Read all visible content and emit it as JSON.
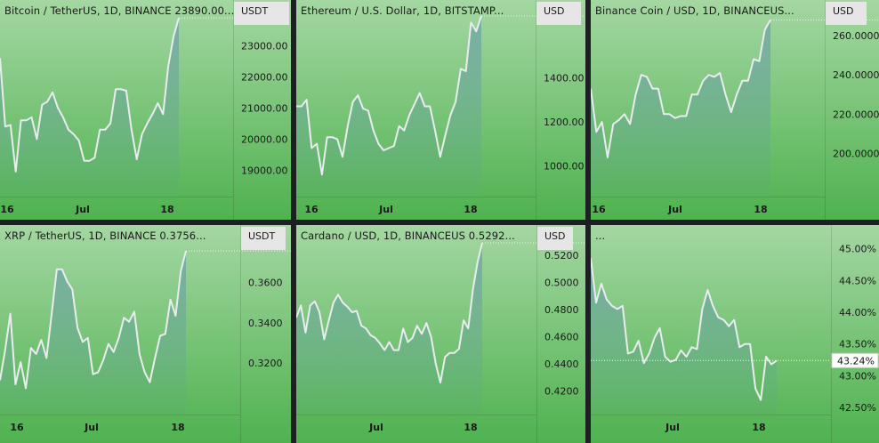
{
  "panes": [
    {
      "id": "btc",
      "title": "Bitcoin / TetherUS, 1D, BINANCE  23890.00...",
      "currency": "USDT"
    },
    {
      "id": "eth",
      "title": "Ethereum / U.S. Dollar, 1D, BITSTAMP...",
      "currency": "USD"
    },
    {
      "id": "bnb",
      "title": "Binance Coin / USD, 1D, BINANCEUS...",
      "currency": "USD"
    },
    {
      "id": "xrp",
      "title": "XRP / TetherUS, 1D, BINANCE  0.3756...",
      "currency": "USDT"
    },
    {
      "id": "ada",
      "title": "Cardano / USD, 1D, BINANCEUS  0.5292...",
      "currency": "USD"
    },
    {
      "id": "pct",
      "title": "...",
      "currency": "",
      "last_label": "43.24%"
    }
  ],
  "chart_data": [
    {
      "type": "area",
      "title": "Bitcoin / TetherUS, 1D, BINANCE  23890.00...",
      "y_unit": "USDT",
      "x_tick_labels": [
        "16",
        "Jul",
        "18"
      ],
      "y_tick_labels": [
        "19000.00",
        "20000.00",
        "21000.00",
        "22000.00",
        "23000.00"
      ],
      "y_ticks": [
        19000,
        20000,
        21000,
        22000,
        23000
      ],
      "ylim": [
        18150,
        23950
      ],
      "values": [
        22600,
        20400,
        20450,
        18950,
        20600,
        20600,
        20700,
        20000,
        21100,
        21200,
        21500,
        21000,
        20700,
        20300,
        20150,
        19950,
        19300,
        19300,
        19400,
        20300,
        20300,
        20500,
        21600,
        21600,
        21550,
        20300,
        19350,
        20150,
        20500,
        20800,
        21150,
        20800,
        22350,
        23300,
        23890
      ]
    },
    {
      "type": "area",
      "title": "Ethereum / U.S. Dollar, 1D, BITSTAMP...",
      "y_unit": "USD",
      "x_tick_labels": [
        "16",
        "Jul",
        "18"
      ],
      "y_tick_labels": [
        "1000.00",
        "1200.00",
        "1400.00"
      ],
      "y_ticks": [
        1000,
        1200,
        1400
      ],
      "ylim": [
        860,
        1680
      ],
      "values": [
        1270,
        1270,
        1300,
        1080,
        1100,
        960,
        1130,
        1130,
        1120,
        1040,
        1180,
        1290,
        1320,
        1260,
        1250,
        1160,
        1100,
        1070,
        1080,
        1090,
        1180,
        1160,
        1230,
        1280,
        1330,
        1270,
        1270,
        1160,
        1040,
        1140,
        1230,
        1290,
        1440,
        1430,
        1650,
        1610,
        1680
      ]
    },
    {
      "type": "area",
      "title": "Binance Coin / USD, 1D, BINANCEUS...",
      "y_unit": "USD",
      "x_tick_labels": [
        "16",
        "Jul",
        "18"
      ],
      "y_tick_labels": [
        "200.0000",
        "220.0000",
        "240.0000",
        "260.0000"
      ],
      "y_ticks": [
        200,
        220,
        240,
        260
      ],
      "ylim": [
        178,
        270
      ],
      "values": [
        233,
        211,
        216,
        198,
        215,
        217,
        220,
        215,
        230,
        240,
        239,
        233,
        233,
        220,
        220,
        218,
        219,
        219,
        230,
        230,
        237,
        240,
        239,
        241,
        230,
        221,
        230,
        237,
        237,
        248,
        247,
        263,
        268
      ]
    },
    {
      "type": "area",
      "title": "XRP / TetherUS, 1D, BINANCE  0.3756...",
      "y_unit": "USDT",
      "x_tick_labels": [
        "16",
        "Jul",
        "18"
      ],
      "y_tick_labels": [
        "0.3200",
        "0.3400",
        "0.3600"
      ],
      "y_ticks": [
        0.32,
        0.34,
        0.36
      ],
      "ylim": [
        0.2945,
        0.3805
      ],
      "values": [
        0.3115,
        0.3265,
        0.3445,
        0.3095,
        0.3205,
        0.3075,
        0.3275,
        0.3245,
        0.3315,
        0.3225,
        0.3445,
        0.3665,
        0.3665,
        0.3605,
        0.3565,
        0.3375,
        0.3305,
        0.3325,
        0.3145,
        0.3155,
        0.3215,
        0.3295,
        0.3255,
        0.3325,
        0.3425,
        0.3405,
        0.3455,
        0.3245,
        0.3155,
        0.3105,
        0.3225,
        0.3335,
        0.3345,
        0.3515,
        0.3435,
        0.3655,
        0.3756
      ]
    },
    {
      "type": "area",
      "title": "Cardano / USD, 1D, BINANCEUS  0.5292...",
      "y_unit": "USD",
      "x_tick_labels": [
        "Jul",
        "18"
      ],
      "y_tick_labels": [
        "0.4200",
        "0.4400",
        "0.4600",
        "0.4800",
        "0.5000",
        "0.5200"
      ],
      "y_ticks": [
        0.42,
        0.44,
        0.46,
        0.48,
        0.5,
        0.52
      ],
      "ylim": [
        0.4025,
        0.5305
      ],
      "values": [
        0.474,
        0.483,
        0.463,
        0.483,
        0.486,
        0.478,
        0.458,
        0.472,
        0.485,
        0.491,
        0.485,
        0.482,
        0.478,
        0.479,
        0.468,
        0.466,
        0.461,
        0.459,
        0.455,
        0.45,
        0.456,
        0.45,
        0.45,
        0.466,
        0.456,
        0.459,
        0.468,
        0.462,
        0.47,
        0.46,
        0.44,
        0.426,
        0.445,
        0.448,
        0.448,
        0.451,
        0.472,
        0.466,
        0.495,
        0.515,
        0.5292
      ]
    },
    {
      "type": "area",
      "title": "...",
      "y_unit": "%",
      "x_tick_labels": [
        "Jul",
        "18"
      ],
      "y_tick_labels": [
        "42.50%",
        "43.00%",
        "43.50%",
        "44.00%",
        "44.50%",
        "45.00%"
      ],
      "y_ticks": [
        42.5,
        43.0,
        43.5,
        44.0,
        44.5,
        45.0
      ],
      "ylim": [
        42.39,
        45.12
      ],
      "last_value": 43.24,
      "values": [
        44.85,
        44.15,
        44.45,
        44.2,
        44.1,
        44.05,
        44.1,
        43.35,
        43.38,
        43.55,
        43.2,
        43.35,
        43.6,
        43.75,
        43.3,
        43.22,
        43.25,
        43.4,
        43.3,
        43.45,
        43.42,
        44.05,
        44.35,
        44.1,
        43.92,
        43.88,
        43.78,
        43.88,
        43.45,
        43.5,
        43.5,
        42.8,
        42.62,
        43.3,
        43.18,
        43.24
      ]
    }
  ]
}
